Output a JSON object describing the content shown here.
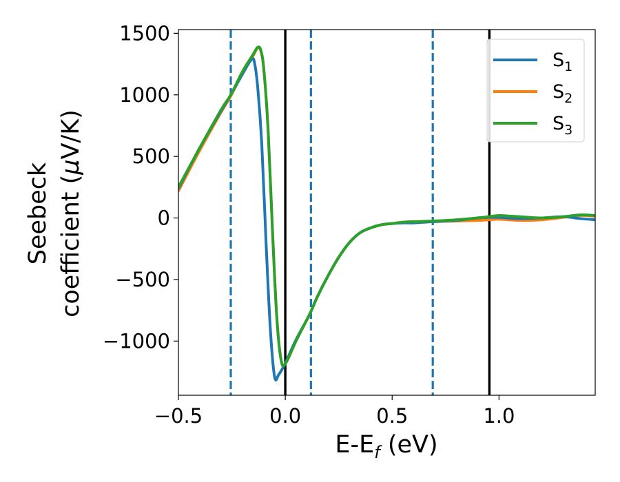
{
  "chart_data": {
    "type": "line",
    "xlabel": "E-E",
    "xlabel_sub": "f",
    "xlabel_unit": " (eV)",
    "ylabel_line1": "Seebeck",
    "ylabel_line2_prefix": "coefficient  (",
    "ylabel_mu": "μ",
    "ylabel_line2_suffix": "V/K)",
    "xlim": [
      -0.5,
      1.45
    ],
    "ylim": [
      -1440,
      1530
    ],
    "x_ticks": [
      -0.5,
      0.0,
      0.5,
      1.0
    ],
    "x_tick_labels": [
      "−0.5",
      "0.0",
      "0.5",
      "1.0"
    ],
    "y_ticks": [
      1500,
      1000,
      500,
      0,
      -500,
      -1000
    ],
    "y_tick_labels": [
      "1500",
      "1000",
      "500",
      "0",
      "−500",
      "−1000"
    ],
    "grid": false,
    "legend_position": "top-right",
    "vlines": [
      {
        "x": -0.255,
        "style": "dashed",
        "color": "#1f77b4"
      },
      {
        "x": 0.0,
        "style": "solid",
        "color": "#000000"
      },
      {
        "x": 0.12,
        "style": "dashed",
        "color": "#1f77b4"
      },
      {
        "x": 0.69,
        "style": "dashed",
        "color": "#1f77b4"
      },
      {
        "x": 0.955,
        "style": "solid",
        "color": "#000000"
      }
    ],
    "series": [
      {
        "name": "S",
        "sub": "1",
        "color": "#1f77b4",
        "x": [
          -0.5,
          -0.4,
          -0.3,
          -0.255,
          -0.2,
          -0.17,
          -0.155,
          -0.145,
          -0.13,
          -0.11,
          -0.09,
          -0.07,
          -0.05,
          -0.03,
          0.0,
          0.05,
          0.1,
          0.12,
          0.15,
          0.2,
          0.25,
          0.3,
          0.35,
          0.4,
          0.45,
          0.5,
          0.55,
          0.6,
          0.69,
          0.8,
          0.9,
          0.95,
          1.0,
          1.1,
          1.2,
          1.3,
          1.38,
          1.45
        ],
        "y": [
          240,
          570,
          870,
          1000,
          1170,
          1260,
          1290,
          1270,
          1080,
          600,
          -200,
          -900,
          -1290,
          -1270,
          -1180,
          -990,
          -830,
          -760,
          -640,
          -470,
          -320,
          -200,
          -120,
          -80,
          -55,
          -45,
          -40,
          -40,
          -30,
          -20,
          0,
          5,
          5,
          -5,
          0,
          10,
          -5,
          -15
        ]
      },
      {
        "name": "S",
        "sub": "2",
        "color": "#ff7f0e",
        "x": [
          -0.5,
          -0.4,
          -0.3,
          -0.255,
          -0.2,
          -0.15,
          -0.13,
          -0.115,
          -0.1,
          -0.08,
          -0.06,
          -0.04,
          -0.02,
          0.0,
          0.05,
          0.1,
          0.12,
          0.15,
          0.2,
          0.25,
          0.3,
          0.35,
          0.4,
          0.45,
          0.5,
          0.55,
          0.6,
          0.69,
          0.8,
          0.9,
          0.95,
          1.0,
          1.1,
          1.2,
          1.3,
          1.38,
          1.45
        ],
        "y": [
          220,
          550,
          860,
          990,
          1180,
          1320,
          1380,
          1360,
          1200,
          700,
          -100,
          -800,
          -1150,
          -1185,
          -1000,
          -830,
          -760,
          -640,
          -470,
          -320,
          -200,
          -120,
          -80,
          -55,
          -45,
          -35,
          -30,
          -30,
          -25,
          -20,
          -15,
          -10,
          -20,
          -15,
          5,
          20,
          15
        ]
      },
      {
        "name": "S",
        "sub": "3",
        "color": "#2ca02c",
        "x": [
          -0.5,
          -0.4,
          -0.3,
          -0.255,
          -0.2,
          -0.15,
          -0.13,
          -0.115,
          -0.1,
          -0.08,
          -0.06,
          -0.04,
          -0.02,
          0.0,
          0.05,
          0.1,
          0.12,
          0.15,
          0.2,
          0.25,
          0.3,
          0.35,
          0.4,
          0.45,
          0.5,
          0.55,
          0.6,
          0.69,
          0.8,
          0.9,
          0.95,
          1.0,
          1.05,
          1.1,
          1.2,
          1.3,
          1.38,
          1.45
        ],
        "y": [
          250,
          570,
          880,
          1000,
          1190,
          1330,
          1385,
          1365,
          1200,
          700,
          -100,
          -800,
          -1150,
          -1185,
          -1000,
          -830,
          -760,
          -640,
          -470,
          -320,
          -200,
          -120,
          -80,
          -55,
          -45,
          -35,
          -30,
          -25,
          -15,
          0,
          10,
          20,
          15,
          10,
          0,
          10,
          25,
          20
        ]
      }
    ]
  }
}
